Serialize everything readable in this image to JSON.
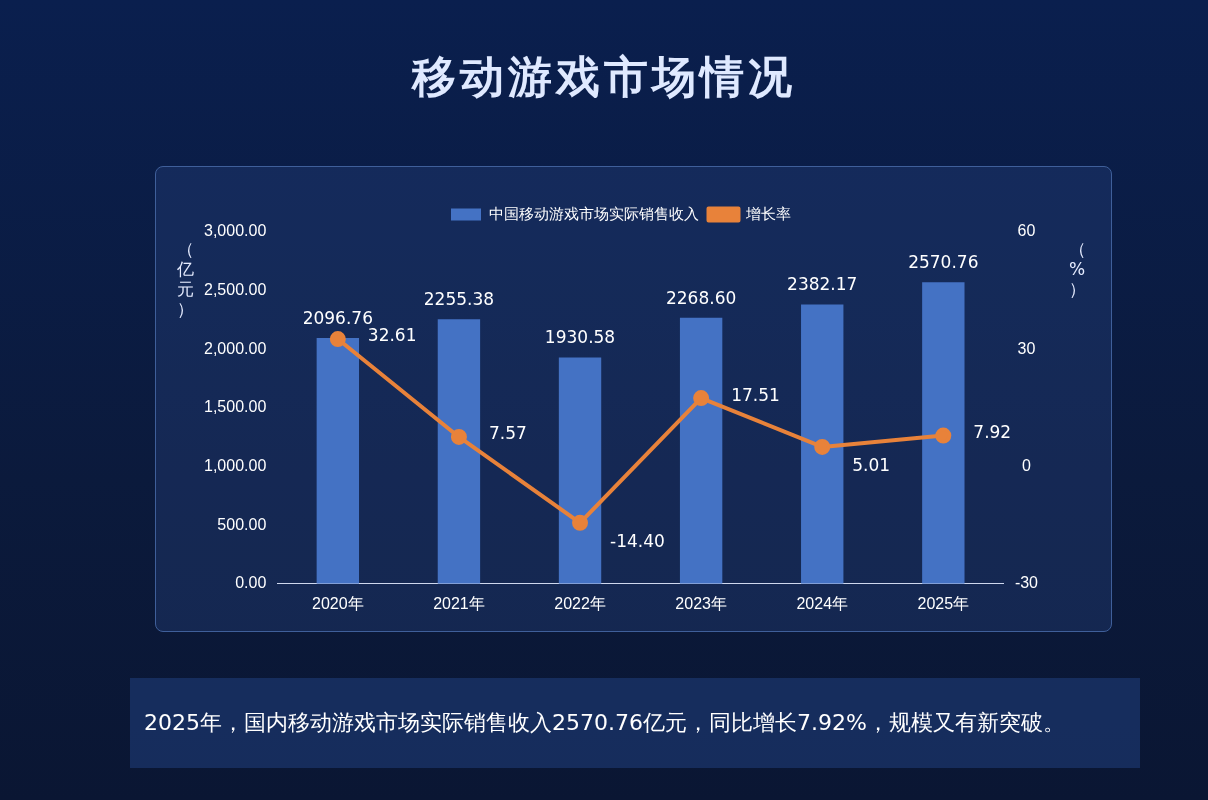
{
  "chart_data": {
    "type": "bar",
    "title": "移动游戏市场情况",
    "categories": [
      "2020年",
      "2021年",
      "2022年",
      "2023年",
      "2024年",
      "2025年"
    ],
    "series": [
      {
        "name": "中国移动游戏市场实际销售收入",
        "color": "#4472c4",
        "values": [
          2096.76,
          2255.38,
          1930.58,
          2268.6,
          2382.17,
          2570.76
        ],
        "value_labels": [
          "2096.76",
          "2255.38",
          "1930.58",
          "2268.60",
          "2382.17",
          "2570.76"
        ]
      },
      {
        "name": "增长率",
        "type": "line",
        "axis": "y2",
        "color": "#e8823a",
        "marker": "circle",
        "values": [
          32.61,
          7.57,
          -14.4,
          17.51,
          5.01,
          7.92
        ],
        "value_labels": [
          "32.61",
          "7.57",
          "-14.40",
          "17.51",
          "5.01",
          "7.92"
        ]
      }
    ],
    "ylabel": "（亿元）",
    "y2label": "（%）",
    "ylim": [
      0,
      3000
    ],
    "yticks": [
      {
        "value": 0,
        "label": "0.00"
      },
      {
        "value": 500,
        "label": "500.00"
      },
      {
        "value": 1000,
        "label": "1,000.00"
      },
      {
        "value": 1500,
        "label": "1,500.00"
      },
      {
        "value": 2000,
        "label": "2,000.00"
      },
      {
        "value": 2500,
        "label": "2,500.00"
      },
      {
        "value": 3000,
        "label": "3,000.00"
      }
    ],
    "y2lim": [
      -30,
      60
    ],
    "y2ticks": [
      -30,
      0,
      30,
      60
    ],
    "grid": false,
    "legend": "top",
    "annotations": [
      "2025年，国内移动游戏市场实际销售收入2570.76亿元，同比增长7.92%，规模又有新突破。"
    ]
  }
}
